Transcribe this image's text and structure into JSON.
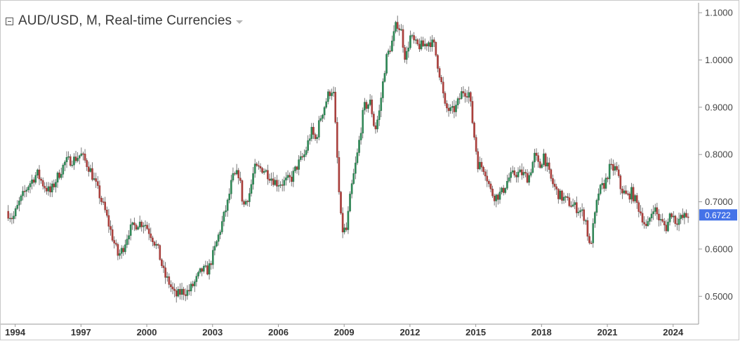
{
  "legend": {
    "title": "AUD/USD, M, Real-time Currencies"
  },
  "colors": {
    "up": "#2e8b57",
    "down": "#b0413e",
    "wick": "#555555",
    "axis": "#9a9a9a",
    "price_label": "#4472e8"
  },
  "chart_data": {
    "type": "candlestick",
    "title": "AUD/USD, M, Real-time Currencies",
    "interval": "M",
    "y_ticks": [
      "0.5000",
      "0.6000",
      "0.7000",
      "0.8000",
      "0.9000",
      "1.0000",
      "1.1000"
    ],
    "x_ticks": [
      "1994",
      "1997",
      "2000",
      "2003",
      "2006",
      "2009",
      "2012",
      "2015",
      "2018",
      "2021",
      "2024"
    ],
    "ylim": [
      0.447,
      1.115
    ],
    "xlim": [
      1993.5,
      2025.0
    ],
    "last_price": "0.6722",
    "grid": false,
    "close_path": [
      [
        1993.6,
        0.68
      ],
      [
        1993.9,
        0.665
      ],
      [
        1994.2,
        0.7
      ],
      [
        1994.6,
        0.735
      ],
      [
        1995.0,
        0.76
      ],
      [
        1995.3,
        0.735
      ],
      [
        1995.6,
        0.72
      ],
      [
        1995.9,
        0.75
      ],
      [
        1996.3,
        0.785
      ],
      [
        1996.7,
        0.79
      ],
      [
        1997.0,
        0.8
      ],
      [
        1997.4,
        0.77
      ],
      [
        1997.8,
        0.72
      ],
      [
        1998.1,
        0.68
      ],
      [
        1998.4,
        0.63
      ],
      [
        1998.7,
        0.585
      ],
      [
        1998.9,
        0.6
      ],
      [
        1999.2,
        0.64
      ],
      [
        1999.6,
        0.655
      ],
      [
        1999.9,
        0.655
      ],
      [
        2000.2,
        0.63
      ],
      [
        2000.5,
        0.6
      ],
      [
        2000.8,
        0.545
      ],
      [
        2001.0,
        0.53
      ],
      [
        2001.3,
        0.5
      ],
      [
        2001.6,
        0.51
      ],
      [
        2001.9,
        0.51
      ],
      [
        2002.2,
        0.53
      ],
      [
        2002.5,
        0.555
      ],
      [
        2002.8,
        0.555
      ],
      [
        2003.1,
        0.6
      ],
      [
        2003.4,
        0.65
      ],
      [
        2003.7,
        0.7
      ],
      [
        2003.9,
        0.75
      ],
      [
        2004.2,
        0.76
      ],
      [
        2004.4,
        0.69
      ],
      [
        2004.7,
        0.72
      ],
      [
        2004.9,
        0.77
      ],
      [
        2005.3,
        0.77
      ],
      [
        2005.6,
        0.755
      ],
      [
        2005.9,
        0.74
      ],
      [
        2006.2,
        0.74
      ],
      [
        2006.6,
        0.75
      ],
      [
        2006.9,
        0.78
      ],
      [
        2007.2,
        0.8
      ],
      [
        2007.5,
        0.85
      ],
      [
        2007.7,
        0.83
      ],
      [
        2007.9,
        0.875
      ],
      [
        2008.3,
        0.93
      ],
      [
        2008.5,
        0.94
      ],
      [
        2008.65,
        0.82
      ],
      [
        2008.8,
        0.69
      ],
      [
        2008.9,
        0.64
      ],
      [
        2009.1,
        0.64
      ],
      [
        2009.3,
        0.72
      ],
      [
        2009.6,
        0.8
      ],
      [
        2009.9,
        0.9
      ],
      [
        2010.2,
        0.91
      ],
      [
        2010.4,
        0.85
      ],
      [
        2010.6,
        0.89
      ],
      [
        2010.9,
        1.0
      ],
      [
        2011.2,
        1.04
      ],
      [
        2011.4,
        1.08
      ],
      [
        2011.6,
        1.06
      ],
      [
        2011.8,
        1.0
      ],
      [
        2012.0,
        1.05
      ],
      [
        2012.3,
        1.03
      ],
      [
        2012.6,
        1.03
      ],
      [
        2012.9,
        1.04
      ],
      [
        2013.1,
        1.03
      ],
      [
        2013.4,
        0.96
      ],
      [
        2013.6,
        0.9
      ],
      [
        2013.9,
        0.89
      ],
      [
        2014.1,
        0.9
      ],
      [
        2014.4,
        0.935
      ],
      [
        2014.7,
        0.93
      ],
      [
        2014.9,
        0.85
      ],
      [
        2015.1,
        0.78
      ],
      [
        2015.4,
        0.77
      ],
      [
        2015.7,
        0.72
      ],
      [
        2015.9,
        0.71
      ],
      [
        2016.2,
        0.72
      ],
      [
        2016.5,
        0.75
      ],
      [
        2016.8,
        0.76
      ],
      [
        2017.1,
        0.76
      ],
      [
        2017.4,
        0.75
      ],
      [
        2017.7,
        0.8
      ],
      [
        2017.9,
        0.77
      ],
      [
        2018.1,
        0.8
      ],
      [
        2018.4,
        0.75
      ],
      [
        2018.7,
        0.72
      ],
      [
        2018.9,
        0.71
      ],
      [
        2019.2,
        0.7
      ],
      [
        2019.5,
        0.69
      ],
      [
        2019.8,
        0.68
      ],
      [
        2020.0,
        0.665
      ],
      [
        2020.2,
        0.6
      ],
      [
        2020.4,
        0.66
      ],
      [
        2020.6,
        0.72
      ],
      [
        2020.9,
        0.74
      ],
      [
        2021.1,
        0.77
      ],
      [
        2021.4,
        0.77
      ],
      [
        2021.6,
        0.73
      ],
      [
        2021.9,
        0.71
      ],
      [
        2022.1,
        0.72
      ],
      [
        2022.3,
        0.7
      ],
      [
        2022.5,
        0.68
      ],
      [
        2022.8,
        0.64
      ],
      [
        2022.9,
        0.66
      ],
      [
        2023.1,
        0.69
      ],
      [
        2023.4,
        0.66
      ],
      [
        2023.7,
        0.645
      ],
      [
        2023.9,
        0.68
      ],
      [
        2024.1,
        0.66
      ],
      [
        2024.4,
        0.665
      ],
      [
        2024.6,
        0.67
      ],
      [
        2024.65,
        0.6722
      ]
    ]
  }
}
